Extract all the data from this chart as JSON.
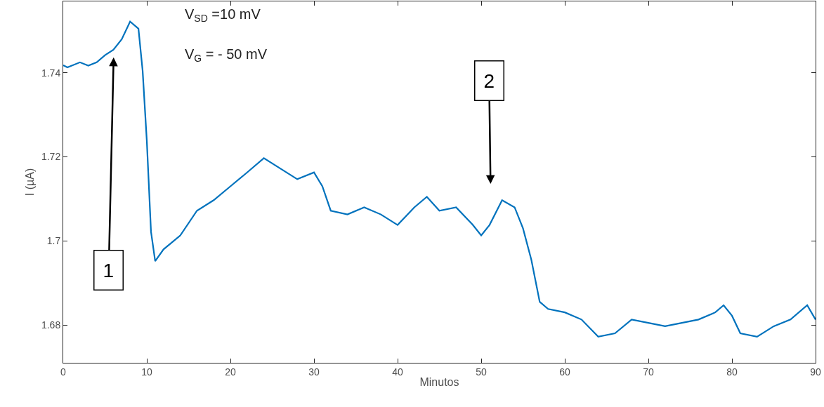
{
  "chart_data": {
    "type": "line",
    "xlabel": "Minutos",
    "ylabel": "I (µA)",
    "x": [
      0,
      0.5,
      2,
      3,
      4,
      5,
      6,
      7,
      8,
      9,
      9.5,
      10,
      10.5,
      11,
      12,
      14,
      16,
      18,
      20,
      22,
      24,
      26,
      28,
      30,
      31,
      32,
      34,
      36,
      38,
      40,
      42,
      43.5,
      45,
      47,
      49,
      50,
      51,
      52.5,
      54,
      55,
      56,
      57,
      58,
      60,
      62,
      64,
      66,
      68,
      70,
      72,
      74,
      76,
      78,
      79,
      80,
      81,
      83,
      85,
      87,
      89,
      90
    ],
    "series": [
      {
        "color": "#0072bd",
        "values": [
          1.7418,
          1.7413,
          1.7425,
          1.7417,
          1.7425,
          1.7442,
          1.7455,
          1.748,
          1.7522,
          1.7505,
          1.7405,
          1.7238,
          1.7022,
          1.6952,
          1.698,
          1.7013,
          1.7072,
          1.7097,
          1.713,
          1.7163,
          1.7197,
          1.7172,
          1.7147,
          1.7163,
          1.713,
          1.7072,
          1.7063,
          1.708,
          1.7063,
          1.7038,
          1.708,
          1.7105,
          1.7072,
          1.708,
          1.7038,
          1.7013,
          1.7038,
          1.7097,
          1.708,
          1.703,
          1.6955,
          1.6855,
          1.6838,
          1.683,
          1.6813,
          1.6772,
          1.678,
          1.6813,
          1.6805,
          1.6797,
          1.6805,
          1.6813,
          1.683,
          1.6847,
          1.6822,
          1.678,
          1.6772,
          1.6797,
          1.6813,
          1.6847,
          1.6813
        ]
      }
    ],
    "xlim": [
      0,
      90
    ],
    "xticks": [
      0,
      10,
      20,
      30,
      40,
      50,
      60,
      70,
      80,
      90
    ],
    "ylim": [
      1.671,
      1.757
    ],
    "yticks": [
      1.68,
      1.7,
      1.72,
      1.74
    ],
    "grid": false,
    "marker": "none",
    "line_style": "solid",
    "annotations": [
      "V$_{SD}$ =10 mV",
      "V$_{G}$ = - 50 mV",
      "1",
      "2"
    ]
  }
}
